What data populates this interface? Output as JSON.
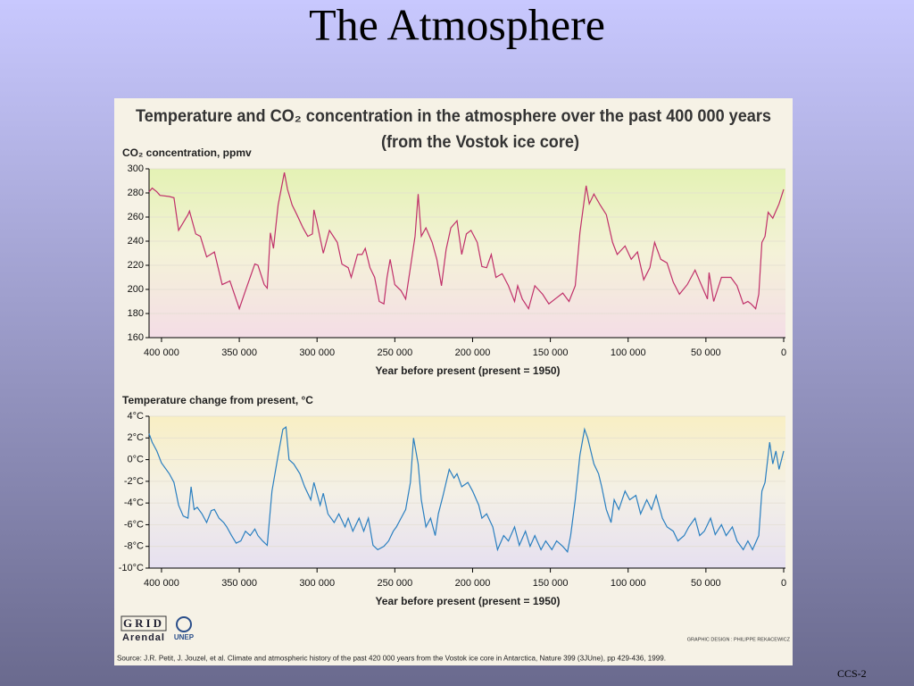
{
  "title": "The Atmosphere",
  "figure": {
    "title": "Temperature and CO₂ concentration in the atmosphere over the past 400 000 years",
    "subtitle": "(from the Vostok ice core)",
    "logos": [
      "GRID",
      "Arendal",
      "UNEP"
    ],
    "credit": "GRAPHIC DESIGN : PHILIPPE REKACEWICZ",
    "source": "Source: J.R. Petit, J. Jouzel, et al. Climate and atmospheric history of the past 420 000 years from the Vostok ice core in Antarctica, Nature 399 (3JUne), pp 429-436, 1999."
  },
  "footer": "CCS-2",
  "chart_data": [
    {
      "type": "line",
      "ylabel": "CO₂ concentration, ppmv",
      "xlabel": "Year before present (present = 1950)",
      "color": "#c0306a",
      "x": [
        408000,
        406000,
        403000,
        401000,
        395000,
        392000,
        389000,
        383000,
        382000,
        378000,
        375000,
        371000,
        366000,
        361000,
        356000,
        350000,
        346000,
        340000,
        338000,
        334000,
        332000,
        330000,
        328000,
        325000,
        321000,
        319000,
        316000,
        313000,
        309000,
        306000,
        303000,
        302000,
        300000,
        296000,
        292000,
        287000,
        284000,
        280000,
        278000,
        274000,
        271000,
        269000,
        266000,
        263000,
        260000,
        257000,
        255000,
        253000,
        250000,
        246000,
        243000,
        240000,
        237000,
        235000,
        233000,
        230000,
        226000,
        223000,
        220000,
        217000,
        214000,
        210000,
        207000,
        204000,
        201000,
        197000,
        194000,
        191000,
        188000,
        185000,
        181000,
        177000,
        173000,
        171000,
        168000,
        164000,
        160000,
        155000,
        151000,
        147000,
        142000,
        138000,
        134000,
        131000,
        127000,
        125000,
        122000,
        118000,
        114000,
        110000,
        107000,
        102000,
        98000,
        94000,
        90000,
        86000,
        83000,
        79000,
        75000,
        71000,
        67000,
        62000,
        57000,
        53000,
        49000,
        48000,
        45000,
        40000,
        34000,
        30000,
        26000,
        23000,
        21000,
        18000,
        16000,
        14000,
        12000,
        10000,
        7000,
        3000,
        0
      ],
      "values": [
        281,
        284,
        281,
        278,
        277,
        276,
        249,
        262,
        265,
        246,
        244,
        227,
        231,
        204,
        207,
        184,
        199,
        221,
        220,
        204,
        201,
        247,
        234,
        270,
        297,
        283,
        270,
        262,
        251,
        244,
        246,
        266,
        255,
        230,
        249,
        239,
        221,
        218,
        210,
        229,
        229,
        234,
        218,
        210,
        190,
        188,
        210,
        225,
        204,
        199,
        192,
        218,
        244,
        279,
        244,
        251,
        239,
        225,
        203,
        233,
        251,
        257,
        229,
        246,
        249,
        239,
        219,
        218,
        229,
        210,
        213,
        203,
        190,
        203,
        192,
        184,
        203,
        196,
        188,
        192,
        197,
        190,
        203,
        247,
        286,
        271,
        279,
        270,
        262,
        239,
        229,
        236,
        225,
        231,
        208,
        218,
        239,
        225,
        222,
        206,
        196,
        204,
        216,
        204,
        192,
        214,
        190,
        210,
        210,
        203,
        188,
        190,
        188,
        184,
        196,
        239,
        244,
        264,
        259,
        271,
        283
      ],
      "xlim": [
        408000,
        0
      ],
      "xticks": [
        {
          "value": 400000,
          "label": "400 000"
        },
        {
          "value": 350000,
          "label": "350 000"
        },
        {
          "value": 300000,
          "label": "300 000"
        },
        {
          "value": 250000,
          "label": "250 000"
        },
        {
          "value": 200000,
          "label": "200 000"
        },
        {
          "value": 150000,
          "label": "150 000"
        },
        {
          "value": 100000,
          "label": "100 000"
        },
        {
          "value": 50000,
          "label": "50 000"
        },
        0
      ],
      "ylim": [
        160,
        300
      ],
      "yticks": [
        160,
        180,
        200,
        220,
        240,
        260,
        280,
        300
      ],
      "grid": true
    },
    {
      "type": "line",
      "ylabel": "Temperature change from present, °C",
      "xlabel": "Year before present (present = 1950)",
      "color": "#2a7fc0",
      "x": [
        408000,
        406000,
        403000,
        400000,
        395000,
        392000,
        389000,
        386000,
        383000,
        381000,
        379000,
        377000,
        374000,
        371000,
        368000,
        366000,
        363000,
        360000,
        358000,
        355000,
        352000,
        349000,
        346000,
        343000,
        340000,
        338000,
        335000,
        332000,
        329000,
        325000,
        322000,
        320000,
        318000,
        315000,
        311000,
        308000,
        304000,
        302000,
        298000,
        296000,
        293000,
        289000,
        286000,
        282000,
        280000,
        277000,
        273000,
        270000,
        267000,
        264000,
        261000,
        257000,
        254000,
        251000,
        249000,
        246000,
        243000,
        240000,
        238000,
        235000,
        233000,
        230000,
        227000,
        224000,
        222000,
        219000,
        217000,
        215000,
        212000,
        210000,
        207000,
        203000,
        200000,
        196000,
        194000,
        191000,
        187000,
        184000,
        180000,
        177000,
        173000,
        170000,
        166000,
        163000,
        160000,
        156000,
        153000,
        149000,
        146000,
        142000,
        139000,
        137000,
        134000,
        131000,
        128000,
        126000,
        124000,
        122000,
        119000,
        117000,
        114000,
        111000,
        109000,
        106000,
        102000,
        99000,
        95000,
        92000,
        88000,
        85000,
        82000,
        78000,
        75000,
        71000,
        68000,
        64000,
        61000,
        57000,
        54000,
        51000,
        47000,
        44000,
        40000,
        37000,
        33000,
        30000,
        26000,
        23000,
        20000,
        16000,
        14000,
        12000,
        10000,
        9000,
        7000,
        5000,
        3000,
        0
      ],
      "values": [
        2.4,
        1.6,
        0.8,
        -0.3,
        -1.3,
        -2.1,
        -4.2,
        -5.2,
        -5.4,
        -2.5,
        -4.6,
        -4.4,
        -5.0,
        -5.8,
        -4.7,
        -4.6,
        -5.4,
        -5.8,
        -6.2,
        -7.0,
        -7.7,
        -7.5,
        -6.6,
        -7.0,
        -6.4,
        -7.0,
        -7.5,
        -7.9,
        -2.9,
        0.4,
        2.8,
        3.0,
        0.0,
        -0.4,
        -1.3,
        -2.5,
        -3.7,
        -2.1,
        -4.2,
        -3.1,
        -5.0,
        -5.8,
        -5.0,
        -6.2,
        -5.4,
        -6.6,
        -5.4,
        -6.6,
        -5.4,
        -7.9,
        -8.3,
        -8.0,
        -7.5,
        -6.6,
        -6.2,
        -5.4,
        -4.6,
        -2.1,
        2.0,
        -0.4,
        -3.7,
        -6.2,
        -5.4,
        -7.0,
        -5.0,
        -3.3,
        -2.1,
        -0.9,
        -1.7,
        -1.3,
        -2.5,
        -2.1,
        -2.9,
        -4.2,
        -5.4,
        -5.0,
        -6.2,
        -8.3,
        -7.0,
        -7.5,
        -6.2,
        -7.9,
        -6.6,
        -8.0,
        -7.0,
        -8.3,
        -7.5,
        -8.3,
        -7.5,
        -8.0,
        -8.5,
        -7.0,
        -3.7,
        0.4,
        2.8,
        2.0,
        0.8,
        -0.4,
        -1.3,
        -2.5,
        -4.6,
        -5.8,
        -3.7,
        -4.6,
        -2.9,
        -3.7,
        -3.3,
        -5.0,
        -3.7,
        -4.6,
        -3.3,
        -5.4,
        -6.2,
        -6.6,
        -7.5,
        -7.0,
        -6.2,
        -5.4,
        -7.0,
        -6.6,
        -5.4,
        -6.9,
        -6.0,
        -7.0,
        -6.2,
        -7.5,
        -8.3,
        -7.5,
        -8.3,
        -7.0,
        -2.9,
        -2.1,
        0.4,
        1.6,
        -0.4,
        0.8,
        -0.9,
        0.8
      ],
      "xlim": [
        408000,
        0
      ],
      "xticks": [
        {
          "value": 400000,
          "label": "400 000"
        },
        {
          "value": 350000,
          "label": "350 000"
        },
        {
          "value": 300000,
          "label": "300 000"
        },
        {
          "value": 250000,
          "label": "250 000"
        },
        {
          "value": 200000,
          "label": "200 000"
        },
        {
          "value": 150000,
          "label": "150 000"
        },
        {
          "value": 100000,
          "label": "100 000"
        },
        {
          "value": 50000,
          "label": "50 000"
        },
        0
      ],
      "ylim": [
        -10,
        4
      ],
      "yticks": [
        {
          "value": -10,
          "label": "-10°C"
        },
        {
          "value": -8,
          "label": "-8°C"
        },
        {
          "value": -6,
          "label": "-6°C"
        },
        {
          "value": -4,
          "label": "-4°C"
        },
        {
          "value": -2,
          "label": "-2°C"
        },
        {
          "value": 0,
          "label": "0°C"
        },
        {
          "value": 2,
          "label": "2°C"
        },
        {
          "value": 4,
          "label": "4°C"
        }
      ],
      "grid": true
    }
  ]
}
